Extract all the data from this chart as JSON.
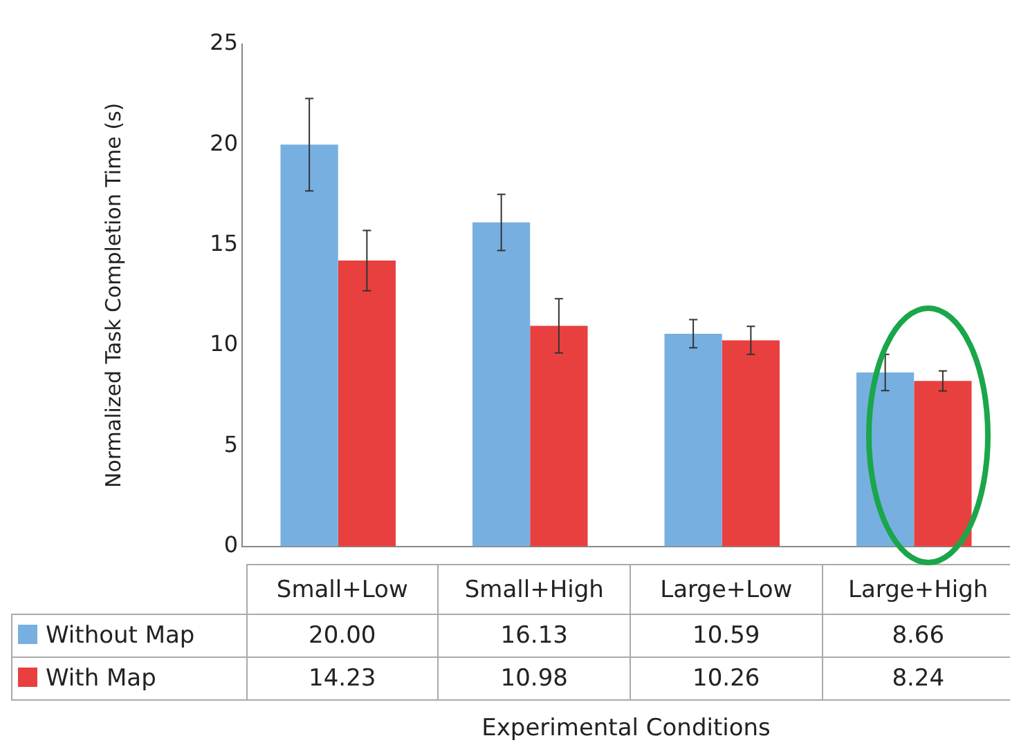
{
  "chart_data": {
    "type": "bar",
    "xlabel": "Experimental Conditions",
    "ylabel": "Normalized Task Completion Time (s)",
    "categories": [
      "Small+Low",
      "Small+High",
      "Large+Low",
      "Large+High"
    ],
    "series": [
      {
        "name": "Without Map",
        "color": "#77b0e0",
        "values": [
          20.0,
          16.13,
          10.59,
          8.66
        ],
        "value_labels": [
          "20.00",
          "16.13",
          "10.59",
          "8.66"
        ],
        "errors": [
          2.3,
          1.4,
          0.7,
          0.9
        ]
      },
      {
        "name": "With Map",
        "color": "#e8403f",
        "values": [
          14.23,
          10.98,
          10.26,
          8.24
        ],
        "value_labels": [
          "14.23",
          "10.98",
          "10.26",
          "8.24"
        ],
        "errors": [
          1.5,
          1.35,
          0.7,
          0.5
        ]
      }
    ],
    "ylim": [
      0,
      25
    ],
    "yticks": [
      0,
      5,
      10,
      15,
      20,
      25
    ],
    "grid": false,
    "legend": "bottom"
  }
}
